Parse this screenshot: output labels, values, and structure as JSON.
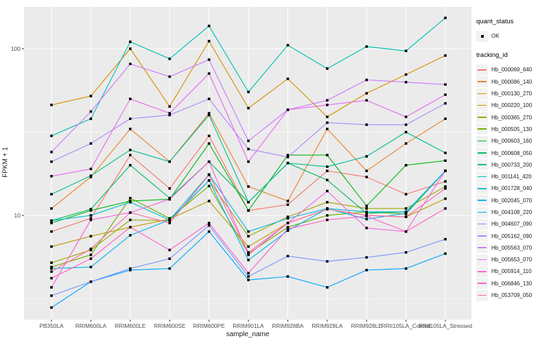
{
  "figure": {
    "panel_background": "#EBEBEB",
    "grid_color": "#FFFFFF",
    "axis_text_color": "#4D4D4D",
    "point_color": "#000000"
  },
  "axes": {
    "x_title": "sample_name",
    "y_title": "FPKM + 1",
    "y_tick_labels": [
      "100",
      "10"
    ],
    "y_tick_values": [
      100,
      10
    ],
    "y_minor_values": [
      31.623,
      3.1623
    ]
  },
  "legend": {
    "quant_status_title": "quant_status",
    "quant_status_items": [
      {
        "label": "OK",
        "marker": "black-square"
      }
    ],
    "tracking_title": "tracking_id"
  },
  "chart_data": {
    "type": "line",
    "title": "",
    "xlabel": "sample_name",
    "ylabel": "FPKM + 1",
    "y_scale": "log10",
    "ylim": [
      2.5,
      170
    ],
    "grid": true,
    "legend_position": "right",
    "marker": "black-square",
    "categories": [
      "PB350LA",
      "RRIM600LA",
      "RRIM600LE",
      "RRIM600SE",
      "RRIM600PE",
      "RRIM901LA",
      "RRIM928BA",
      "RRIM928LA",
      "RRIM928LE",
      "RRII105LA_Control",
      "RRII105LA_Stressed"
    ],
    "series": [
      {
        "name": "Hb_000069_640",
        "color": "#F8766D",
        "values": [
          8.0,
          9.6,
          23,
          14.5,
          30,
          10.7,
          11.6,
          18.5,
          17,
          13.4,
          16
        ]
      },
      {
        "name": "Hb_000086_140",
        "color": "#E9842C",
        "values": [
          11,
          17,
          33,
          21,
          41,
          14.9,
          12.2,
          33,
          18.5,
          27,
          38
        ]
      },
      {
        "name": "Hb_000130_270",
        "color": "#D69100",
        "values": [
          46,
          52,
          100,
          45,
          111,
          44,
          66,
          39,
          54,
          70,
          91
        ]
      },
      {
        "name": "Hb_000220_100",
        "color": "#BC9D00",
        "values": [
          6.5,
          7.5,
          8.5,
          9.5,
          12.2,
          6.5,
          9.0,
          10.9,
          10.0,
          9.8,
          12.6
        ]
      },
      {
        "name": "Hb_000365_270",
        "color": "#9CA700",
        "values": [
          5.2,
          6.2,
          9.4,
          9.3,
          16.2,
          7.5,
          9.8,
          12.0,
          11.0,
          11.0,
          14.9
        ]
      },
      {
        "name": "Hb_000505_130",
        "color": "#6FB000",
        "values": [
          4.9,
          5.8,
          12.7,
          9.6,
          15.0,
          5.9,
          8.5,
          10.0,
          10.5,
          10.2,
          18.5
        ]
      },
      {
        "name": "Hb_000603_160",
        "color": "#00B813",
        "values": [
          9.0,
          10.7,
          12.2,
          12.5,
          27,
          10.7,
          23,
          23,
          11.4,
          20,
          21.3
        ]
      },
      {
        "name": "Hb_000608_050",
        "color": "#00BD61",
        "values": [
          9.3,
          10.9,
          20,
          12.7,
          21,
          12.0,
          20.6,
          16.3,
          10.3,
          10.5,
          18.5
        ]
      },
      {
        "name": "Hb_000733_200",
        "color": "#00C08E",
        "values": [
          13.4,
          17.3,
          24.7,
          21,
          40,
          12.0,
          20.6,
          19.6,
          22.6,
          31.6,
          23.7
        ]
      },
      {
        "name": "Hb_001141_420",
        "color": "#00C0B4",
        "values": [
          30,
          38,
          110,
          87,
          137,
          55,
          105,
          76,
          103,
          97,
          153
        ]
      },
      {
        "name": "Hb_001728_040",
        "color": "#00BDD4",
        "values": [
          9.3,
          10.0,
          12.0,
          9.4,
          17.6,
          8.0,
          9.6,
          11.0,
          10.5,
          10.5,
          18.5
        ]
      },
      {
        "name": "Hb_002045_070",
        "color": "#00B5EC",
        "values": [
          4.8,
          4.9,
          7.6,
          9.4,
          16.2,
          5.4,
          8.1,
          11.0,
          9.5,
          10.3,
          18.5
        ]
      },
      {
        "name": "Hb_004108_220",
        "color": "#00A7FF",
        "values": [
          2.8,
          4.0,
          4.7,
          4.8,
          8.0,
          4.1,
          4.3,
          3.7,
          4.7,
          4.8,
          5.9
        ]
      },
      {
        "name": "Hb_004607_090",
        "color": "#7997FF",
        "values": [
          3.3,
          4.0,
          4.8,
          5.5,
          8.7,
          4.3,
          5.7,
          5.3,
          5.6,
          6.0,
          7.2
        ]
      },
      {
        "name": "Hb_005162_090",
        "color": "#AC88FF",
        "values": [
          21,
          27,
          38,
          40,
          50,
          25,
          22.4,
          36,
          35,
          35,
          47
        ]
      },
      {
        "name": "Hb_005563_070",
        "color": "#CF78FF",
        "values": [
          24,
          42,
          81,
          68,
          86,
          28,
          43,
          49,
          65,
          63,
          61
        ]
      },
      {
        "name": "Hb_005653_070",
        "color": "#E868F1",
        "values": [
          17.2,
          19,
          50,
          41,
          71,
          21,
          43,
          46,
          49,
          39,
          53
        ]
      },
      {
        "name": "Hb_005914_110",
        "color": "#F863DF",
        "values": [
          3.7,
          9.4,
          10.4,
          12.5,
          21,
          5.8,
          9.0,
          14,
          8.4,
          8.0,
          18.5
        ]
      },
      {
        "name": "Hb_006846_130",
        "color": "#FF61C7",
        "values": [
          4.2,
          5.5,
          8.5,
          6.2,
          9.0,
          4.5,
          8.3,
          9.4,
          9.9,
          8.0,
          11.0
        ]
      },
      {
        "name": "Hb_053709_050",
        "color": "#FF68A8",
        "values": [
          4.6,
          6.3,
          10.4,
          9.0,
          17.5,
          6.0,
          9.0,
          10.9,
          10.0,
          9.8,
          14.5
        ]
      }
    ]
  }
}
